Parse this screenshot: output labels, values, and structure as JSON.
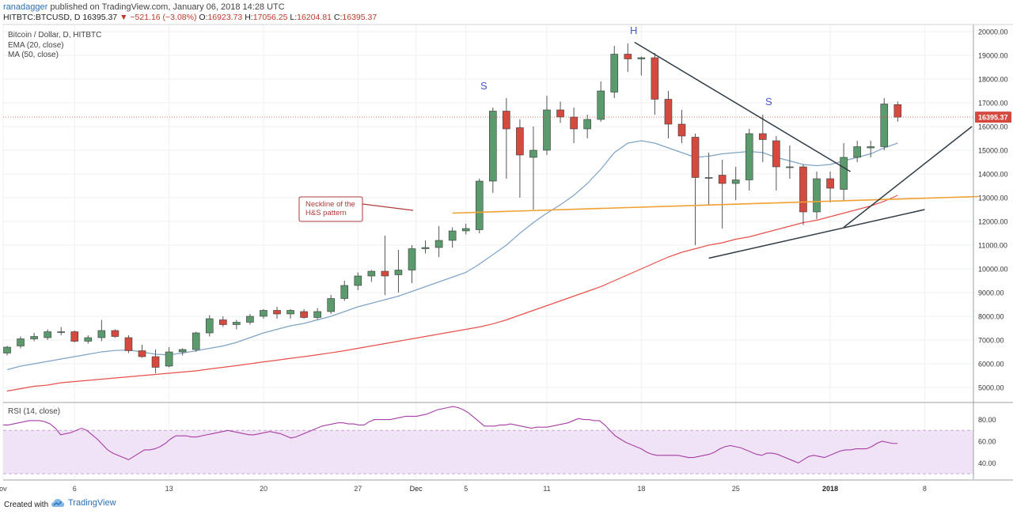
{
  "header": {
    "publisher": "ranadagger",
    "published_text": "published on TradingView.com, January 06, 2018 14:28 UTC",
    "symbol": "HITBTC:BTCUSD, D",
    "last": "16395.37",
    "change_arrow": "▼",
    "change": "−521.16 (−3.08%)",
    "open_label": "O:",
    "open": "16923.73",
    "high_label": "H:",
    "high": "17056.25",
    "low_label": "L:",
    "low": "16204.81",
    "close_label": "C:",
    "close": "16395.37"
  },
  "price_panel": {
    "title": "Bitcoin / Dollar, D, HITBTC",
    "ema_label": "EMA (20, close)",
    "ma_label": "MA (50, close)",
    "last_price_badge": "16395.37"
  },
  "rsi_panel": {
    "title": "RSI (14, close)"
  },
  "annotations": {
    "left_shoulder": "S",
    "head": "H",
    "right_shoulder": "S",
    "neckline_line1": "Neckline of the",
    "neckline_line2": "H&S pattern"
  },
  "footer": {
    "created_with": "Created with",
    "brand": "TradingView"
  },
  "colors": {
    "up": "#5b9a6d",
    "down": "#d44a3f",
    "ema": "#7fa3c5",
    "ma": "#e8504a",
    "rsi": "#a63ea6",
    "rsi_band": "#f1e3f6",
    "neckline": "#f0a030",
    "trendline": "#2e3b44",
    "callout": "#b03a3a",
    "price_line": "#d44a3f"
  },
  "chart_data": [
    {
      "type": "candlestick",
      "title": "Bitcoin / Dollar, D, HITBTC",
      "ylim": [
        4400,
        20300
      ],
      "y_ticks": [
        "5000.00",
        "6000.00",
        "7000.00",
        "8000.00",
        "9000.00",
        "10000.00",
        "11000.00",
        "12000.00",
        "13000.00",
        "14000.00",
        "15000.00",
        "16000.00",
        "17000.00",
        "18000.00",
        "19000.00",
        "20000.00"
      ],
      "x_ticks": [
        "ov",
        "6",
        "13",
        "20",
        "27",
        "Dec",
        "5",
        "11",
        "18",
        "25",
        "2018",
        "8"
      ],
      "bars": [
        {
          "o": 6450,
          "h": 6750,
          "l": 6350,
          "c": 6700
        },
        {
          "o": 6750,
          "h": 7150,
          "l": 6650,
          "c": 7050
        },
        {
          "o": 7050,
          "h": 7300,
          "l": 6950,
          "c": 7150
        },
        {
          "o": 7100,
          "h": 7450,
          "l": 7000,
          "c": 7350
        },
        {
          "o": 7350,
          "h": 7550,
          "l": 7200,
          "c": 7350
        },
        {
          "o": 7350,
          "h": 7400,
          "l": 6900,
          "c": 6950
        },
        {
          "o": 6950,
          "h": 7200,
          "l": 6850,
          "c": 7100
        },
        {
          "o": 7100,
          "h": 7850,
          "l": 6950,
          "c": 7400
        },
        {
          "o": 7400,
          "h": 7450,
          "l": 7100,
          "c": 7150
        },
        {
          "o": 7100,
          "h": 7200,
          "l": 6450,
          "c": 6550
        },
        {
          "o": 6550,
          "h": 6800,
          "l": 6250,
          "c": 6300
        },
        {
          "o": 6300,
          "h": 6600,
          "l": 5600,
          "c": 5850
        },
        {
          "o": 5900,
          "h": 6700,
          "l": 5850,
          "c": 6500
        },
        {
          "o": 6500,
          "h": 6650,
          "l": 6350,
          "c": 6600
        },
        {
          "o": 6600,
          "h": 7350,
          "l": 6500,
          "c": 7300
        },
        {
          "o": 7300,
          "h": 8050,
          "l": 7150,
          "c": 7900
        },
        {
          "o": 7850,
          "h": 8000,
          "l": 7550,
          "c": 7650
        },
        {
          "o": 7650,
          "h": 7850,
          "l": 7450,
          "c": 7750
        },
        {
          "o": 7750,
          "h": 8100,
          "l": 7650,
          "c": 8000
        },
        {
          "o": 8000,
          "h": 8300,
          "l": 7900,
          "c": 8250
        },
        {
          "o": 8250,
          "h": 8400,
          "l": 7900,
          "c": 8100
        },
        {
          "o": 8100,
          "h": 8300,
          "l": 7900,
          "c": 8250
        },
        {
          "o": 8200,
          "h": 8300,
          "l": 7900,
          "c": 7950
        },
        {
          "o": 7950,
          "h": 8350,
          "l": 7850,
          "c": 8200
        },
        {
          "o": 8200,
          "h": 8900,
          "l": 8100,
          "c": 8750
        },
        {
          "o": 8750,
          "h": 9500,
          "l": 8650,
          "c": 9300
        },
        {
          "o": 9300,
          "h": 9850,
          "l": 9100,
          "c": 9700
        },
        {
          "o": 9700,
          "h": 9950,
          "l": 9450,
          "c": 9900
        },
        {
          "o": 9900,
          "h": 11400,
          "l": 8900,
          "c": 9700
        },
        {
          "o": 9750,
          "h": 10800,
          "l": 9000,
          "c": 9950
        },
        {
          "o": 9950,
          "h": 11000,
          "l": 9400,
          "c": 10850
        },
        {
          "o": 10850,
          "h": 11200,
          "l": 10650,
          "c": 10900
        },
        {
          "o": 10900,
          "h": 11800,
          "l": 10500,
          "c": 11200
        },
        {
          "o": 11200,
          "h": 11750,
          "l": 10900,
          "c": 11600
        },
        {
          "o": 11600,
          "h": 11900,
          "l": 11450,
          "c": 11700
        },
        {
          "o": 11650,
          "h": 13800,
          "l": 11500,
          "c": 13700
        },
        {
          "o": 13700,
          "h": 16800,
          "l": 13200,
          "c": 16650
        },
        {
          "o": 16650,
          "h": 17200,
          "l": 13800,
          "c": 15900
        },
        {
          "o": 15950,
          "h": 16300,
          "l": 13000,
          "c": 14800
        },
        {
          "o": 14700,
          "h": 16000,
          "l": 12500,
          "c": 15000
        },
        {
          "o": 15000,
          "h": 17300,
          "l": 14800,
          "c": 16700
        },
        {
          "o": 16700,
          "h": 17050,
          "l": 16150,
          "c": 16400
        },
        {
          "o": 16400,
          "h": 16800,
          "l": 15300,
          "c": 15900
        },
        {
          "o": 15900,
          "h": 16500,
          "l": 15500,
          "c": 16300
        },
        {
          "o": 16300,
          "h": 17900,
          "l": 16200,
          "c": 17500
        },
        {
          "o": 17450,
          "h": 19400,
          "l": 17200,
          "c": 19050
        },
        {
          "o": 19050,
          "h": 19500,
          "l": 18300,
          "c": 18850
        },
        {
          "o": 18850,
          "h": 18950,
          "l": 18150,
          "c": 18900
        },
        {
          "o": 18900,
          "h": 19100,
          "l": 16500,
          "c": 17150
        },
        {
          "o": 17150,
          "h": 17500,
          "l": 15500,
          "c": 16100
        },
        {
          "o": 16100,
          "h": 16700,
          "l": 15300,
          "c": 15600
        },
        {
          "o": 15550,
          "h": 15700,
          "l": 11000,
          "c": 13850
        },
        {
          "o": 13850,
          "h": 14900,
          "l": 12700,
          "c": 13850
        },
        {
          "o": 13950,
          "h": 14600,
          "l": 11700,
          "c": 13600
        },
        {
          "o": 13600,
          "h": 14300,
          "l": 12900,
          "c": 13750
        },
        {
          "o": 13750,
          "h": 15900,
          "l": 13300,
          "c": 15700
        },
        {
          "o": 15700,
          "h": 16500,
          "l": 14500,
          "c": 15450
        },
        {
          "o": 15400,
          "h": 15600,
          "l": 13300,
          "c": 14300
        },
        {
          "o": 14300,
          "h": 15200,
          "l": 13800,
          "c": 14300
        },
        {
          "o": 14300,
          "h": 14400,
          "l": 11850,
          "c": 12400
        },
        {
          "o": 12400,
          "h": 14100,
          "l": 12100,
          "c": 13800
        },
        {
          "o": 13800,
          "h": 14100,
          "l": 12800,
          "c": 13400
        },
        {
          "o": 13350,
          "h": 15300,
          "l": 12900,
          "c": 14700
        },
        {
          "o": 14700,
          "h": 15400,
          "l": 14500,
          "c": 15150
        },
        {
          "o": 15100,
          "h": 15400,
          "l": 14700,
          "c": 15150
        },
        {
          "o": 15150,
          "h": 17200,
          "l": 15000,
          "c": 16950
        },
        {
          "o": 16923.73,
          "h": 17056.25,
          "l": 16204.81,
          "c": 16395.37
        }
      ],
      "ema20": [
        5750,
        5900,
        6000,
        6100,
        6200,
        6300,
        6400,
        6500,
        6560,
        6580,
        6500,
        6400,
        6380,
        6450,
        6550,
        6650,
        6750,
        6900,
        7100,
        7300,
        7450,
        7600,
        7700,
        7850,
        8000,
        8200,
        8400,
        8550,
        8700,
        8850,
        9050,
        9250,
        9450,
        9650,
        9850,
        10200,
        10600,
        11000,
        11500,
        11950,
        12350,
        12700,
        13100,
        13600,
        14200,
        14900,
        15300,
        15400,
        15300,
        15100,
        14900,
        14700,
        14750,
        14850,
        14900,
        14950,
        14900,
        14700,
        14550,
        14400,
        14350,
        14400,
        14550,
        14700,
        14850,
        15100,
        15300
      ],
      "ma50": [
        4850,
        4950,
        5050,
        5100,
        5200,
        5250,
        5300,
        5350,
        5400,
        5450,
        5500,
        5550,
        5600,
        5650,
        5700,
        5780,
        5850,
        5920,
        6000,
        6080,
        6150,
        6230,
        6300,
        6380,
        6460,
        6550,
        6650,
        6750,
        6850,
        6950,
        7050,
        7150,
        7250,
        7350,
        7450,
        7550,
        7680,
        7850,
        8050,
        8250,
        8450,
        8650,
        8850,
        9050,
        9250,
        9500,
        9750,
        10000,
        10250,
        10500,
        10700,
        10850,
        11000,
        11100,
        11250,
        11350,
        11500,
        11650,
        11800,
        11950,
        12050,
        12200,
        12350,
        12500,
        12650,
        12850,
        13100
      ],
      "neckline": {
        "x0": 33.0,
        "y0": 12350,
        "x1": 72.0,
        "y1": 13050
      },
      "trendlines": [
        {
          "x0": 46.5,
          "y0": 19550,
          "x1": 62.5,
          "y1": 14100
        },
        {
          "x0": 52.0,
          "y0": 10450,
          "x1": 68.0,
          "y1": 12500
        },
        {
          "x0": 62.0,
          "y0": 11750,
          "x1": 71.5,
          "y1": 16000
        }
      ],
      "last_price": 16395.37
    },
    {
      "type": "line",
      "title": "RSI (14, close)",
      "ylim": [
        25,
        95
      ],
      "y_ticks": [
        "40.00",
        "60.00",
        "80.00"
      ],
      "band": [
        30,
        70
      ],
      "values": [
        75,
        75,
        76,
        77,
        78,
        79,
        79,
        79,
        78,
        76,
        72,
        66,
        67,
        68,
        70,
        72,
        70,
        66,
        62,
        57,
        52,
        49,
        47,
        45,
        43,
        46,
        49,
        52,
        52,
        53,
        55,
        58,
        62,
        65,
        65,
        65,
        64,
        64,
        65,
        66,
        67,
        68,
        69,
        70,
        69,
        68,
        67,
        66,
        66,
        67,
        68,
        69,
        68,
        67,
        65,
        63,
        64,
        66,
        68,
        70,
        72,
        74,
        75,
        76,
        77,
        77,
        76,
        76,
        75,
        75,
        78,
        80,
        80,
        80,
        80,
        81,
        82,
        83,
        83,
        83,
        84,
        85,
        87,
        89,
        90,
        91,
        92,
        91,
        89,
        86,
        82,
        78,
        74,
        74,
        74,
        75,
        75,
        76,
        75,
        74,
        73,
        72,
        73,
        73,
        73,
        74,
        75,
        76,
        77,
        79,
        81,
        80,
        80,
        79,
        79,
        75,
        70,
        65,
        62,
        59,
        57,
        55,
        53,
        50,
        48,
        47,
        47,
        47,
        47,
        47,
        46,
        45,
        45,
        46,
        47,
        48,
        50,
        53,
        55,
        56,
        55,
        54,
        52,
        50,
        48,
        47,
        49,
        49,
        48,
        46,
        44,
        42,
        40,
        43,
        46,
        47,
        46,
        45,
        47,
        49,
        51,
        52,
        52,
        53,
        53,
        53,
        55,
        58,
        60,
        59,
        58,
        58
      ]
    }
  ]
}
